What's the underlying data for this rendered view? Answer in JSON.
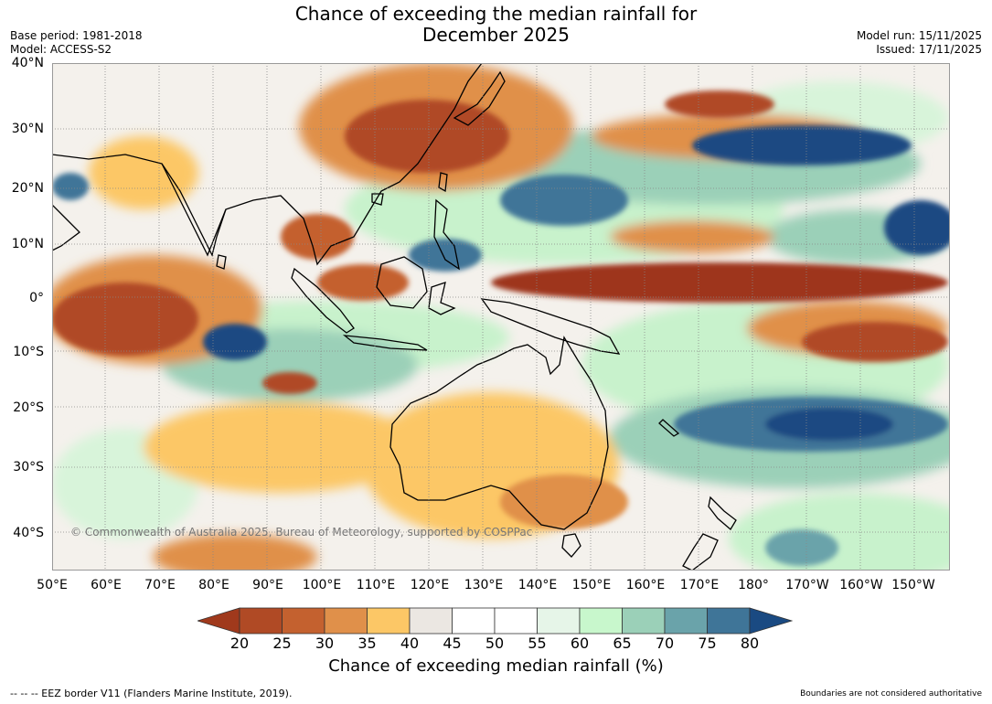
{
  "title_line1": "Chance of exceeding the median rainfall for",
  "title_line2": "December 2025",
  "base_period": "Base period: 1981-2018",
  "model": "Model: ACCESS-S2",
  "model_run": "Model run: 15/11/2025",
  "issued": "Issued: 17/11/2025",
  "copyright": "© Commonwealth of Australia 2025, Bureau of Meteorology, supported by COSPPac",
  "lat_labels": [
    "40°N",
    "30°N",
    "20°N",
    "10°N",
    "0°",
    "10°S",
    "20°S",
    "30°S",
    "40°S"
  ],
  "lon_labels": [
    "50°E",
    "60°E",
    "70°E",
    "80°E",
    "90°E",
    "100°E",
    "110°E",
    "120°E",
    "130°E",
    "140°E",
    "150°E",
    "160°E",
    "170°E",
    "180°",
    "170°W",
    "160°W",
    "150°W"
  ],
  "colorbar": {
    "ticks": [
      "20",
      "25",
      "30",
      "35",
      "40",
      "45",
      "50",
      "55",
      "60",
      "65",
      "70",
      "75",
      "80"
    ],
    "colors": [
      "#a0391c",
      "#b04a25",
      "#c4612f",
      "#e0904a",
      "#fcc766",
      "#ebe7e2",
      "#ffffff",
      "#ffffff",
      "#e6f5e8",
      "#c8f7cc",
      "#9bd0b8",
      "#6aa3aa",
      "#3f7598",
      "#1a4a82"
    ],
    "label": "Chance of exceeding median rainfall (%)"
  },
  "footer_left": "--  --  -- EEZ border V11 (Flanders Marine Institute, 2019).",
  "footer_right": "Boundaries are not considered authoritative"
}
